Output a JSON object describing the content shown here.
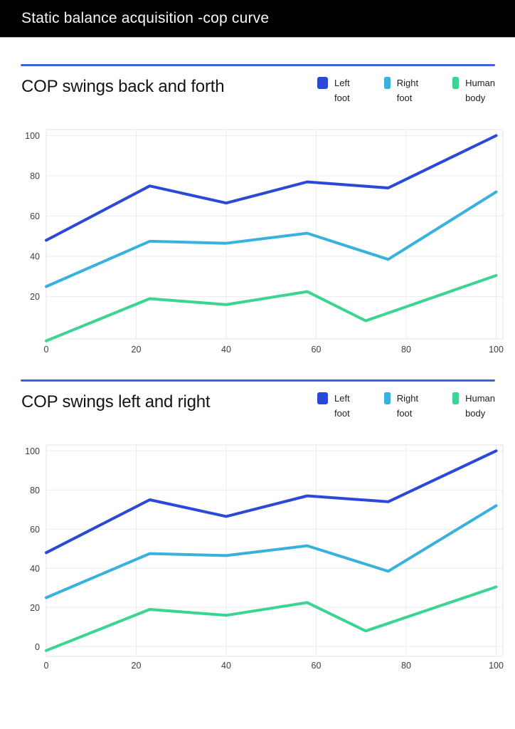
{
  "header": {
    "title": "Static balance acquisition -cop curve"
  },
  "colors": {
    "header_bg": "#010101",
    "header_text": "#f7f7f7",
    "section_divider": "#3D63DB",
    "gridline": "#ececec",
    "plot_border": "#e3e3e3",
    "tick_text": "#3d3d3d"
  },
  "chart_data": [
    {
      "type": "line",
      "title": "COP swings back and forth",
      "xlabel": "",
      "ylabel": "",
      "xlim": [
        0,
        101.5
      ],
      "ylim": [
        -1,
        103
      ],
      "x_ticks": [
        0,
        20,
        40,
        60,
        80,
        100
      ],
      "y_ticks": [
        20,
        40,
        60,
        80,
        100
      ],
      "grid": true,
      "legend_position": "top-right",
      "series": [
        {
          "name": "Left foot",
          "legend_lines": [
            "Left",
            "foot"
          ],
          "color": "#2A49D6",
          "points": [
            [
              0,
              48
            ],
            [
              23,
              75
            ],
            [
              40,
              66.5
            ],
            [
              58,
              77
            ],
            [
              76,
              74
            ],
            [
              100,
              100
            ]
          ]
        },
        {
          "name": "Right foot",
          "legend_lines": [
            "Right",
            "foot"
          ],
          "color": "#38B1DC",
          "points": [
            [
              0,
              25
            ],
            [
              23,
              47.5
            ],
            [
              40,
              46.5
            ],
            [
              58,
              51.5
            ],
            [
              76,
              38.5
            ],
            [
              100,
              72
            ]
          ]
        },
        {
          "name": "Human body",
          "legend_lines": [
            "Human",
            "body"
          ],
          "color": "#3BD492",
          "points": [
            [
              0,
              -2
            ],
            [
              23,
              19
            ],
            [
              40,
              16
            ],
            [
              58,
              22.5
            ],
            [
              71,
              8
            ],
            [
              100,
              30.5
            ]
          ]
        }
      ]
    },
    {
      "type": "line",
      "title": "COP swings left and right",
      "xlabel": "",
      "ylabel": "",
      "xlim": [
        0,
        101.5
      ],
      "ylim": [
        -5,
        103
      ],
      "x_ticks": [
        0,
        20,
        40,
        60,
        80,
        100
      ],
      "y_ticks": [
        0,
        20,
        40,
        60,
        80,
        100
      ],
      "grid": true,
      "legend_position": "top-right",
      "series": [
        {
          "name": "Left foot",
          "legend_lines": [
            "Left",
            "foot"
          ],
          "color": "#2A49D6",
          "points": [
            [
              0,
              48
            ],
            [
              23,
              75
            ],
            [
              40,
              66.5
            ],
            [
              58,
              77
            ],
            [
              76,
              74
            ],
            [
              100,
              100
            ]
          ]
        },
        {
          "name": "Right foot",
          "legend_lines": [
            "Right",
            "foot"
          ],
          "color": "#38B1DC",
          "points": [
            [
              0,
              25
            ],
            [
              23,
              47.5
            ],
            [
              40,
              46.5
            ],
            [
              58,
              51.5
            ],
            [
              76,
              38.5
            ],
            [
              100,
              72
            ]
          ]
        },
        {
          "name": "Human body",
          "legend_lines": [
            "Human",
            "body"
          ],
          "color": "#3BD492",
          "points": [
            [
              0,
              -2
            ],
            [
              23,
              19
            ],
            [
              40,
              16
            ],
            [
              58,
              22.5
            ],
            [
              71,
              8
            ],
            [
              100,
              30.5
            ]
          ]
        }
      ]
    }
  ]
}
